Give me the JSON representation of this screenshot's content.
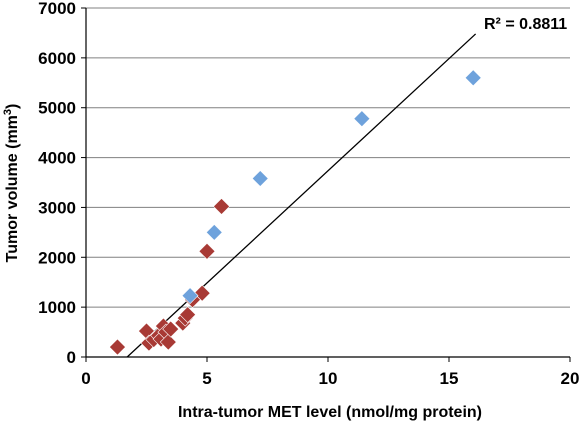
{
  "chart_data": {
    "type": "scatter",
    "xlabel": "Intra-tumor MET level (nmol/mg protein)",
    "ylabel_main": "Tumor volume (mm",
    "ylabel_sup": "3",
    "ylabel_tail": ")",
    "xlim": [
      0,
      20
    ],
    "ylim": [
      0,
      7000
    ],
    "x_ticks": [
      0,
      5,
      10,
      15,
      20
    ],
    "y_ticks": [
      0,
      1000,
      2000,
      3000,
      4000,
      5000,
      6000,
      7000
    ],
    "x_tick_labels": [
      "0",
      "5",
      "10",
      "15",
      "20"
    ],
    "y_tick_labels": [
      "0",
      "1000",
      "2000",
      "3000",
      "4000",
      "5000",
      "6000",
      "7000"
    ],
    "grid": "horizontal",
    "annotation": "R² = 0.8811",
    "trendline": {
      "x": [
        1.7,
        16.1
      ],
      "y": [
        0,
        6480
      ]
    },
    "series": [
      {
        "color": "#a83a35",
        "marker": "diamond",
        "points": [
          {
            "x": 1.3,
            "y": 200
          },
          {
            "x": 2.5,
            "y": 520
          },
          {
            "x": 2.6,
            "y": 280
          },
          {
            "x": 2.8,
            "y": 350
          },
          {
            "x": 3.0,
            "y": 430
          },
          {
            "x": 3.1,
            "y": 360
          },
          {
            "x": 3.2,
            "y": 620
          },
          {
            "x": 3.3,
            "y": 500
          },
          {
            "x": 3.4,
            "y": 300
          },
          {
            "x": 3.5,
            "y": 560
          },
          {
            "x": 4.0,
            "y": 680
          },
          {
            "x": 4.1,
            "y": 780
          },
          {
            "x": 4.2,
            "y": 850
          },
          {
            "x": 4.4,
            "y": 1150
          },
          {
            "x": 4.8,
            "y": 1280
          },
          {
            "x": 5.0,
            "y": 2120
          },
          {
            "x": 5.6,
            "y": 3020
          }
        ]
      },
      {
        "color": "#6ea2dc",
        "marker": "diamond",
        "points": [
          {
            "x": 4.3,
            "y": 1230
          },
          {
            "x": 5.3,
            "y": 2500
          },
          {
            "x": 7.2,
            "y": 3580
          },
          {
            "x": 11.4,
            "y": 4780
          },
          {
            "x": 16.0,
            "y": 5600
          }
        ]
      }
    ],
    "colors": {
      "trendline": "#000000",
      "axis": "#000000",
      "gridline": "#808080"
    }
  }
}
